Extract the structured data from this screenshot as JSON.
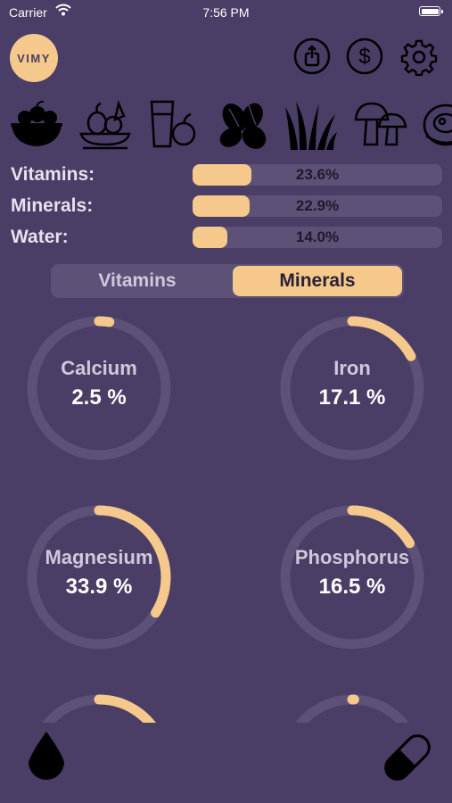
{
  "status_bar": {
    "carrier": "Carrier",
    "time": "7:56 PM"
  },
  "app": {
    "logo_text": "VIMY"
  },
  "top_actions": [
    "share-icon",
    "dollar-icon",
    "gear-icon"
  ],
  "food_categories": [
    "fruits-icon",
    "vegetables-icon",
    "drinks-icon",
    "nuts-icon",
    "greens-icon",
    "mushrooms-icon",
    "meat-icon"
  ],
  "stats": [
    {
      "label": "Vitamins:",
      "value": "23.6%",
      "fraction": 0.236
    },
    {
      "label": "Minerals:",
      "value": "22.9%",
      "fraction": 0.229
    },
    {
      "label": "Water:",
      "value": "14.0%",
      "fraction": 0.14
    }
  ],
  "tabs": {
    "vitamins": "Vitamins",
    "minerals": "Minerals",
    "selected": "Minerals"
  },
  "nutrients": [
    {
      "name": "Calcium",
      "value_text": "2.5 %",
      "value": 2.5
    },
    {
      "name": "Iron",
      "value_text": "17.1 %",
      "value": 17.1
    },
    {
      "name": "Magnesium",
      "value_text": "33.9 %",
      "value": 33.9
    },
    {
      "name": "Phosphorus",
      "value_text": "16.5 %",
      "value": 16.5
    },
    {
      "name": "",
      "value_text": "",
      "value": 18
    },
    {
      "name": "",
      "value_text": "",
      "value": 0.5
    }
  ],
  "bottom_actions": [
    "water-drop-icon",
    "pill-icon"
  ],
  "colors": {
    "background": "#4a3d66",
    "accent": "#f5c98c",
    "track": "#5d5178"
  }
}
